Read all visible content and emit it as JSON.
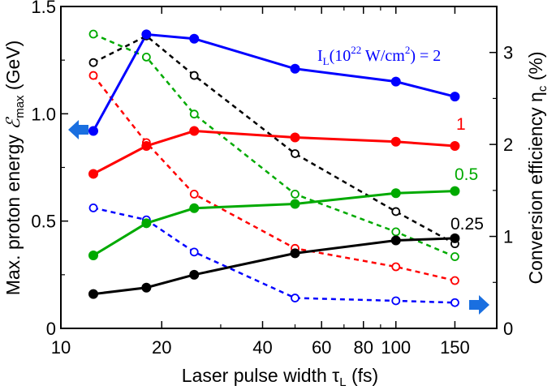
{
  "chart_data": {
    "type": "line",
    "xlabel": "Laser pulse width τ",
    "xlabel_sub": "L",
    "xlabel_unit": " (fs)",
    "ylabel_left_pre": "Max. proton energy ",
    "ylabel_left_sym": "ℰ",
    "ylabel_left_sub": "max",
    "ylabel_left_unit": " (GeV)",
    "ylabel_right_pre": "Conversion efficiency  η",
    "ylabel_right_sub": "c",
    "ylabel_right_unit": " (%)",
    "x_scale": "log",
    "xlim": [
      10,
      200
    ],
    "ylim_left": [
      0,
      1.5
    ],
    "ylim_right": [
      0,
      3.5
    ],
    "x_ticks": [
      10,
      20,
      40,
      60,
      80,
      100,
      150
    ],
    "y_left_ticks": [
      0,
      0.5,
      1.0,
      1.5
    ],
    "y_left_tick_labels": [
      "0",
      "0.5",
      "1.0",
      "1.5"
    ],
    "y_right_ticks": [
      0,
      1,
      2,
      3
    ],
    "y_right_tick_labels": [
      "0",
      "1",
      "2",
      "3"
    ],
    "x": [
      12.5,
      18,
      25,
      50,
      100,
      150
    ],
    "energy_series": [
      {
        "label": "2",
        "color": "#0000ff",
        "values": [
          0.92,
          1.37,
          1.35,
          1.21,
          1.15,
          1.08
        ]
      },
      {
        "label": "1",
        "color": "#ff0000",
        "values": [
          0.72,
          0.85,
          0.92,
          0.89,
          0.87,
          0.85
        ]
      },
      {
        "label": "0.5",
        "color": "#00aa00",
        "values": [
          0.34,
          0.49,
          0.56,
          0.58,
          0.63,
          0.64
        ]
      },
      {
        "label": "0.25",
        "color": "#000000",
        "values": [
          0.16,
          0.19,
          0.25,
          0.35,
          0.41,
          0.42
        ]
      }
    ],
    "efficiency_series": [
      {
        "color": "#0000ff",
        "values": [
          1.31,
          1.18,
          0.83,
          0.33,
          0.3,
          0.28
        ]
      },
      {
        "color": "#ff0000",
        "values": [
          2.75,
          2.02,
          1.46,
          0.87,
          0.67,
          0.52
        ]
      },
      {
        "color": "#00aa00",
        "values": [
          3.2,
          2.95,
          2.33,
          1.46,
          1.05,
          0.78
        ]
      },
      {
        "color": "#000000",
        "values": [
          2.89,
          3.18,
          2.75,
          1.9,
          1.27,
          0.92
        ]
      }
    ],
    "intensity_label_pre": "I",
    "intensity_label_sub": "L",
    "intensity_label_mid": "(10",
    "intensity_label_sup": "22",
    "intensity_label_unit": " W/cm",
    "intensity_label_sup2": "2",
    "intensity_label_post": ") = 2",
    "arrow_color": "#1a6fe0"
  }
}
